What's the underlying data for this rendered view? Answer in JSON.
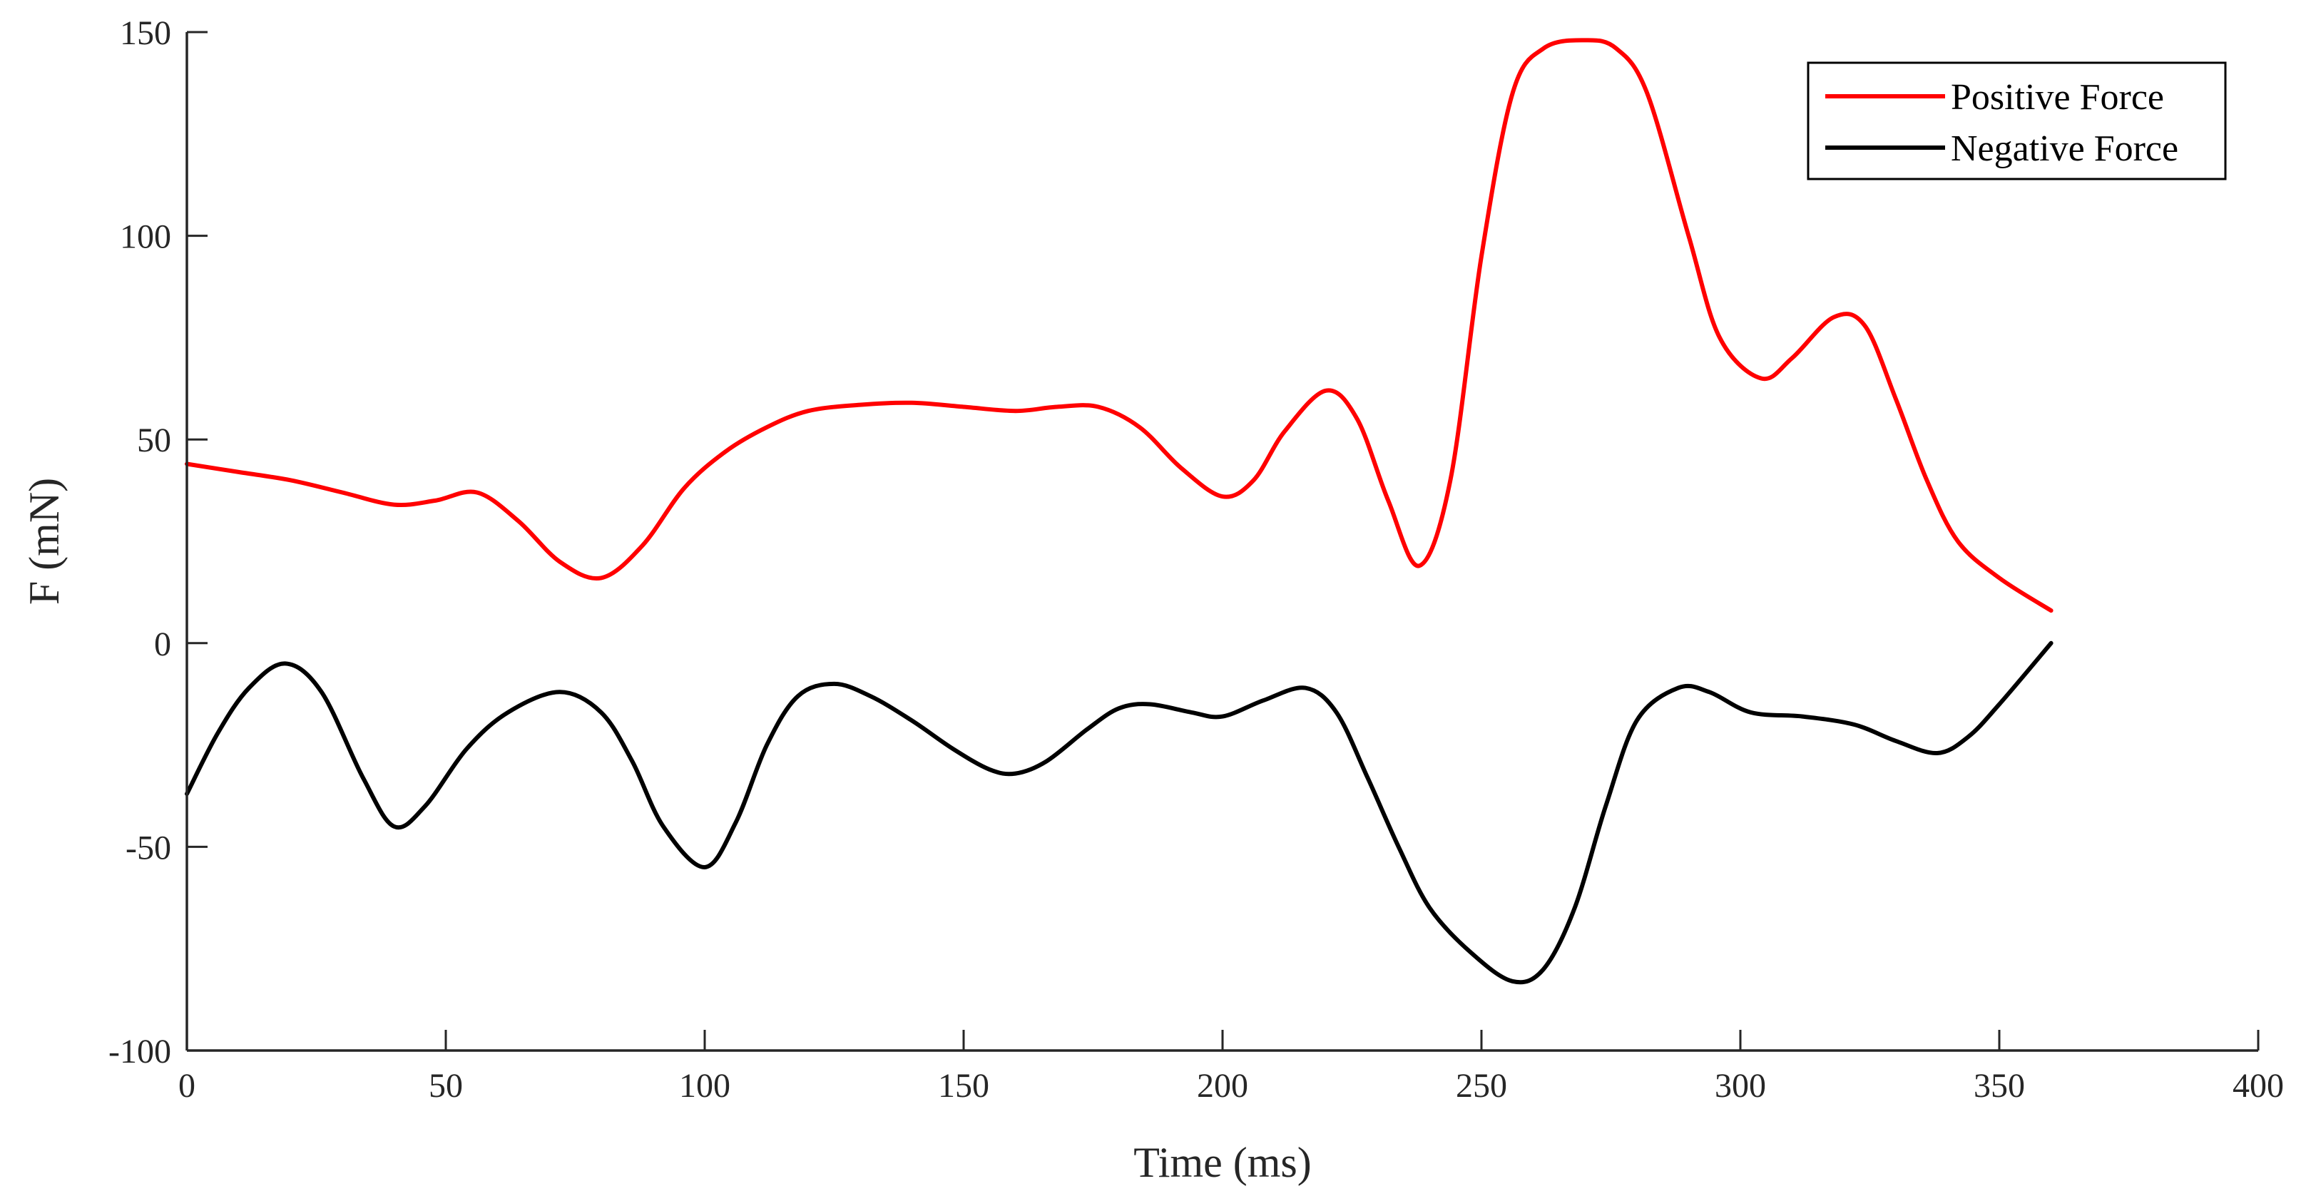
{
  "chart_data": {
    "type": "line",
    "title": "",
    "xlabel": "Time (ms)",
    "ylabel": "F (mN)",
    "xlim": [
      0,
      400
    ],
    "ylim": [
      -100,
      150
    ],
    "xticks": [
      0,
      50,
      100,
      150,
      200,
      250,
      300,
      350,
      400
    ],
    "yticks": [
      -100,
      -50,
      0,
      50,
      100,
      150
    ],
    "grid": false,
    "legend_position": "top-right",
    "series": [
      {
        "name": "Positive Force",
        "color": "#ff0000",
        "x": [
          0,
          10,
          20,
          30,
          40,
          48,
          56,
          64,
          72,
          80,
          88,
          96,
          104,
          112,
          120,
          130,
          140,
          150,
          160,
          168,
          176,
          184,
          192,
          200,
          206,
          212,
          220,
          226,
          232,
          238,
          244,
          250,
          256,
          262,
          270,
          276,
          282,
          290,
          296,
          304,
          310,
          318,
          324,
          330,
          336,
          342,
          350,
          360
        ],
        "y": [
          44,
          42,
          40,
          37,
          34,
          35,
          37,
          30,
          20,
          16,
          24,
          38,
          47,
          53,
          57,
          58.5,
          59,
          58,
          57,
          58,
          58,
          53,
          43,
          36,
          40,
          52,
          62,
          55,
          35,
          19,
          40,
          95,
          135,
          146,
          148,
          146,
          135,
          100,
          75,
          65,
          70,
          80,
          78,
          60,
          40,
          25,
          16,
          8
        ]
      },
      {
        "name": "Negative Force",
        "color": "#000000",
        "x": [
          0,
          6,
          12,
          19,
          26,
          34,
          40,
          46,
          54,
          62,
          72,
          80,
          86,
          92,
          100,
          106,
          112,
          118,
          125,
          132,
          140,
          148,
          155,
          160,
          166,
          174,
          180,
          186,
          194,
          200,
          208,
          216,
          222,
          228,
          234,
          240,
          248,
          256,
          262,
          268,
          274,
          280,
          288,
          294,
          302,
          312,
          322,
          330,
          338,
          344,
          350,
          360
        ],
        "y": [
          -37,
          -22,
          -11,
          -5,
          -12,
          -33,
          -45,
          -40,
          -26,
          -17,
          -12,
          -17,
          -29,
          -45,
          -55,
          -44,
          -25,
          -13,
          -10,
          -13,
          -19,
          -26,
          -31,
          -32,
          -29,
          -21,
          -16,
          -15,
          -17,
          -18,
          -14,
          -11,
          -17,
          -33,
          -50,
          -65,
          -76,
          -83,
          -80,
          -65,
          -40,
          -19,
          -11,
          -12,
          -17,
          -18,
          -20,
          -24,
          -27,
          -23,
          -15,
          0
        ]
      }
    ]
  }
}
